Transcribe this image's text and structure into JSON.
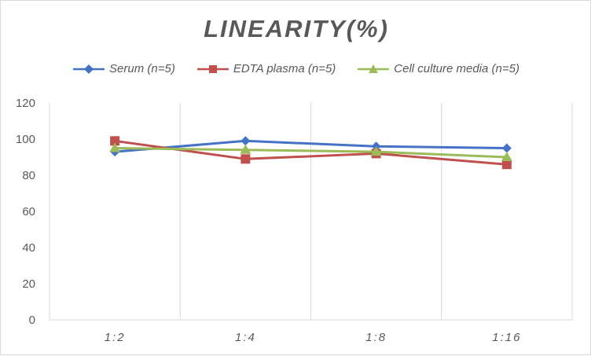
{
  "chart_data": {
    "type": "line",
    "title": "LINEARITY(%)",
    "xlabel": "",
    "ylabel": "",
    "categories": [
      "1:2",
      "1:4",
      "1:8",
      "1:16"
    ],
    "ylim": [
      0,
      120
    ],
    "yticks": [
      0,
      20,
      40,
      60,
      80,
      100,
      120
    ],
    "grid": "vertical",
    "legend_position": "top",
    "series": [
      {
        "name": "Serum (n=5)",
        "values": [
          93,
          99,
          96,
          95
        ],
        "color": "#4472c4",
        "marker": "diamond"
      },
      {
        "name": "EDTA plasma (n=5)",
        "values": [
          99,
          89,
          92,
          86
        ],
        "color": "#c0504d",
        "marker": "square"
      },
      {
        "name": "Cell culture media (n=5)",
        "values": [
          95,
          94,
          93,
          90
        ],
        "color": "#9bbb59",
        "marker": "triangle"
      }
    ]
  }
}
